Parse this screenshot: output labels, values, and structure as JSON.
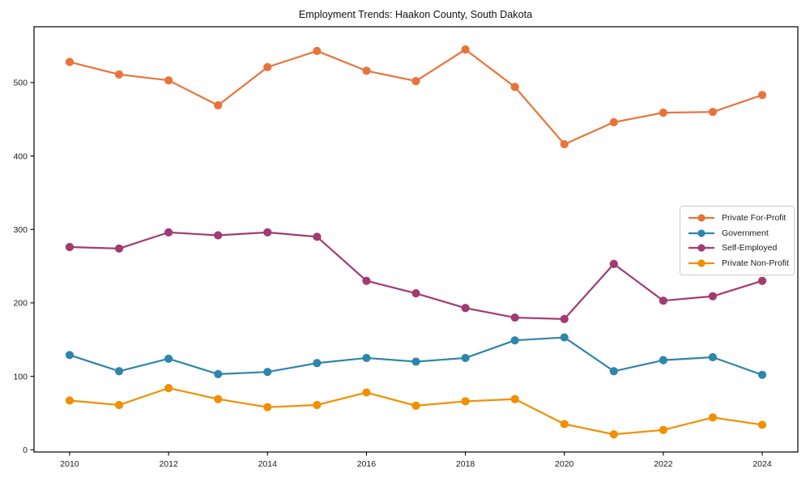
{
  "figure": {
    "title": "Employment Trends: Haakon County, South Dakota",
    "background": "#ffffff",
    "axis_color": "#000000",
    "tick_label_color": "#1a1a1a"
  },
  "chart_data": {
    "type": "line",
    "title": "Employment Trends: Haakon County, South Dakota",
    "xlabel": "",
    "ylabel": "",
    "x": [
      2010,
      2011,
      2012,
      2013,
      2014,
      2015,
      2016,
      2017,
      2018,
      2019,
      2020,
      2021,
      2022,
      2023,
      2024
    ],
    "series": [
      {
        "name": "Private For-Profit",
        "color": "#E8743B",
        "values": [
          528,
          511,
          503,
          469,
          521,
          543,
          516,
          502,
          545,
          494,
          416,
          446,
          459,
          460,
          483
        ]
      },
      {
        "name": "Government",
        "color": "#2E86AB",
        "values": [
          129,
          107,
          124,
          103,
          106,
          118,
          125,
          120,
          125,
          149,
          153,
          107,
          122,
          126,
          102
        ]
      },
      {
        "name": "Self-Employed",
        "color": "#A23B72",
        "values": [
          276,
          274,
          296,
          292,
          296,
          290,
          230,
          213,
          193,
          180,
          178,
          253,
          203,
          209,
          230
        ]
      },
      {
        "name": "Private Non-Profit",
        "color": "#F18F01",
        "values": [
          67,
          61,
          84,
          69,
          58,
          61,
          78,
          60,
          66,
          69,
          35,
          21,
          27,
          44,
          34
        ]
      }
    ],
    "xticks": [
      2010,
      2012,
      2014,
      2016,
      2018,
      2020,
      2022,
      2024
    ],
    "yticks": [
      0,
      100,
      200,
      300,
      400,
      500
    ],
    "xlim": [
      2009.28,
      2024.72
    ],
    "ylim": [
      -3,
      576
    ],
    "grid": false,
    "legend_position": "center-right",
    "marker": "circle"
  }
}
